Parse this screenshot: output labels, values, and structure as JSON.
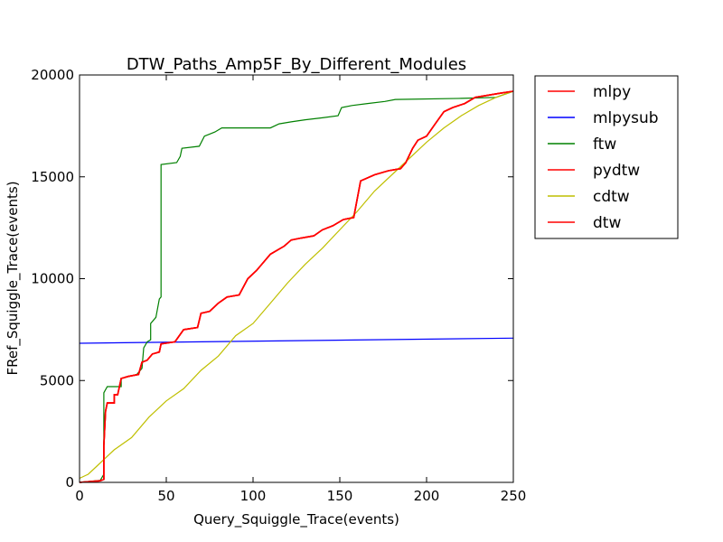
{
  "chart_data": {
    "type": "line",
    "title": "DTW_Paths_Amp5F_By_Different_Modules",
    "xlabel": "Query_Squiggle_Trace(events)",
    "ylabel": "FRef_Squiggle_Trace(events)",
    "xlim": [
      0,
      250
    ],
    "ylim": [
      0,
      20000
    ],
    "xticks": [
      0,
      50,
      100,
      150,
      200,
      250
    ],
    "yticks": [
      0,
      5000,
      10000,
      15000,
      20000
    ],
    "grid": false,
    "legend_placement": "outside-right",
    "series": [
      {
        "name": "mlpy",
        "color": "#ff0000",
        "points": [
          [
            0,
            0
          ],
          [
            12,
            80
          ],
          [
            14,
            150
          ],
          [
            14,
            1800
          ],
          [
            15,
            3500
          ],
          [
            16,
            3900
          ],
          [
            20,
            3900
          ],
          [
            20,
            4300
          ],
          [
            22,
            4300
          ],
          [
            24,
            5100
          ],
          [
            28,
            5200
          ],
          [
            34,
            5300
          ],
          [
            36,
            5900
          ],
          [
            39,
            6000
          ],
          [
            42,
            6300
          ],
          [
            46,
            6400
          ],
          [
            47,
            6800
          ],
          [
            55,
            6900
          ],
          [
            60,
            7500
          ],
          [
            68,
            7600
          ],
          [
            70,
            8300
          ],
          [
            75,
            8400
          ],
          [
            80,
            8800
          ],
          [
            85,
            9100
          ],
          [
            92,
            9200
          ],
          [
            97,
            10000
          ],
          [
            102,
            10400
          ],
          [
            110,
            11200
          ],
          [
            118,
            11600
          ],
          [
            122,
            11900
          ],
          [
            128,
            12000
          ],
          [
            135,
            12100
          ],
          [
            140,
            12400
          ],
          [
            146,
            12600
          ],
          [
            152,
            12900
          ],
          [
            158,
            13000
          ],
          [
            162,
            14800
          ],
          [
            170,
            15100
          ],
          [
            178,
            15300
          ],
          [
            185,
            15400
          ],
          [
            188,
            15700
          ],
          [
            192,
            16400
          ],
          [
            195,
            16800
          ],
          [
            200,
            17000
          ],
          [
            205,
            17600
          ],
          [
            210,
            18200
          ],
          [
            215,
            18400
          ],
          [
            222,
            18600
          ],
          [
            228,
            18900
          ],
          [
            235,
            19000
          ],
          [
            242,
            19100
          ],
          [
            250,
            19200
          ]
        ]
      },
      {
        "name": "mlpysub",
        "color": "#0000ff",
        "points": [
          [
            0,
            6830
          ],
          [
            250,
            7080
          ]
        ]
      },
      {
        "name": "ftw",
        "color": "#008000",
        "points": [
          [
            0,
            0
          ],
          [
            12,
            100
          ],
          [
            14,
            400
          ],
          [
            14,
            4400
          ],
          [
            16,
            4700
          ],
          [
            24,
            4700
          ],
          [
            24,
            5100
          ],
          [
            33,
            5300
          ],
          [
            36,
            5600
          ],
          [
            37,
            6600
          ],
          [
            39,
            6900
          ],
          [
            41,
            7000
          ],
          [
            41,
            7800
          ],
          [
            44,
            8100
          ],
          [
            46,
            9000
          ],
          [
            47,
            9100
          ],
          [
            47,
            15600
          ],
          [
            56,
            15700
          ],
          [
            58,
            16000
          ],
          [
            59,
            16400
          ],
          [
            69,
            16500
          ],
          [
            72,
            17000
          ],
          [
            75,
            17100
          ],
          [
            78,
            17200
          ],
          [
            82,
            17400
          ],
          [
            110,
            17400
          ],
          [
            115,
            17600
          ],
          [
            122,
            17700
          ],
          [
            130,
            17800
          ],
          [
            140,
            17900
          ],
          [
            149,
            18000
          ],
          [
            151,
            18400
          ],
          [
            157,
            18500
          ],
          [
            166,
            18600
          ],
          [
            176,
            18700
          ],
          [
            182,
            18800
          ],
          [
            220,
            18850
          ],
          [
            240,
            18900
          ],
          [
            250,
            19200
          ]
        ]
      },
      {
        "name": "pydtw",
        "color": "#ff0000",
        "points": [
          [
            0,
            0
          ],
          [
            12,
            80
          ],
          [
            14,
            150
          ],
          [
            14,
            1800
          ],
          [
            15,
            3500
          ],
          [
            16,
            3900
          ],
          [
            20,
            3900
          ],
          [
            20,
            4300
          ],
          [
            22,
            4300
          ],
          [
            24,
            5100
          ],
          [
            28,
            5200
          ],
          [
            34,
            5300
          ],
          [
            36,
            5900
          ],
          [
            39,
            6000
          ],
          [
            42,
            6300
          ],
          [
            46,
            6400
          ],
          [
            47,
            6800
          ],
          [
            55,
            6900
          ],
          [
            60,
            7500
          ],
          [
            68,
            7600
          ],
          [
            70,
            8300
          ],
          [
            75,
            8400
          ],
          [
            80,
            8800
          ],
          [
            85,
            9100
          ],
          [
            92,
            9200
          ],
          [
            97,
            10000
          ],
          [
            102,
            10400
          ],
          [
            110,
            11200
          ],
          [
            118,
            11600
          ],
          [
            122,
            11900
          ],
          [
            128,
            12000
          ],
          [
            135,
            12100
          ],
          [
            140,
            12400
          ],
          [
            146,
            12600
          ],
          [
            152,
            12900
          ],
          [
            158,
            13000
          ],
          [
            162,
            14800
          ],
          [
            170,
            15100
          ],
          [
            178,
            15300
          ],
          [
            185,
            15400
          ],
          [
            188,
            15700
          ],
          [
            192,
            16400
          ],
          [
            195,
            16800
          ],
          [
            200,
            17000
          ],
          [
            205,
            17600
          ],
          [
            210,
            18200
          ],
          [
            215,
            18400
          ],
          [
            222,
            18600
          ],
          [
            228,
            18900
          ],
          [
            235,
            19000
          ],
          [
            242,
            19100
          ],
          [
            250,
            19200
          ]
        ]
      },
      {
        "name": "cdtw",
        "color": "#bfbf00",
        "points": [
          [
            0,
            200
          ],
          [
            5,
            400
          ],
          [
            10,
            800
          ],
          [
            15,
            1200
          ],
          [
            20,
            1600
          ],
          [
            30,
            2200
          ],
          [
            40,
            3200
          ],
          [
            50,
            4000
          ],
          [
            60,
            4600
          ],
          [
            70,
            5500
          ],
          [
            80,
            6200
          ],
          [
            90,
            7200
          ],
          [
            100,
            7800
          ],
          [
            110,
            8800
          ],
          [
            120,
            9800
          ],
          [
            130,
            10700
          ],
          [
            140,
            11500
          ],
          [
            150,
            12400
          ],
          [
            160,
            13300
          ],
          [
            170,
            14300
          ],
          [
            180,
            15100
          ],
          [
            190,
            15900
          ],
          [
            200,
            16700
          ],
          [
            210,
            17400
          ],
          [
            220,
            18000
          ],
          [
            230,
            18500
          ],
          [
            240,
            18900
          ],
          [
            250,
            19200
          ]
        ]
      },
      {
        "name": "dtw",
        "color": "#ff0000",
        "points": [
          [
            0,
            0
          ],
          [
            12,
            80
          ],
          [
            14,
            150
          ],
          [
            14,
            1800
          ],
          [
            15,
            3500
          ],
          [
            16,
            3900
          ],
          [
            20,
            3900
          ],
          [
            20,
            4300
          ],
          [
            22,
            4300
          ],
          [
            24,
            5100
          ],
          [
            28,
            5200
          ],
          [
            34,
            5300
          ],
          [
            36,
            5900
          ],
          [
            39,
            6000
          ],
          [
            42,
            6300
          ],
          [
            46,
            6400
          ],
          [
            47,
            6800
          ],
          [
            55,
            6900
          ],
          [
            60,
            7500
          ],
          [
            68,
            7600
          ],
          [
            70,
            8300
          ],
          [
            75,
            8400
          ],
          [
            80,
            8800
          ],
          [
            85,
            9100
          ],
          [
            92,
            9200
          ],
          [
            97,
            10000
          ],
          [
            102,
            10400
          ],
          [
            110,
            11200
          ],
          [
            118,
            11600
          ],
          [
            122,
            11900
          ],
          [
            128,
            12000
          ],
          [
            135,
            12100
          ],
          [
            140,
            12400
          ],
          [
            146,
            12600
          ],
          [
            152,
            12900
          ],
          [
            158,
            13000
          ],
          [
            162,
            14800
          ],
          [
            170,
            15100
          ],
          [
            178,
            15300
          ],
          [
            185,
            15400
          ],
          [
            188,
            15700
          ],
          [
            192,
            16400
          ],
          [
            195,
            16800
          ],
          [
            200,
            17000
          ],
          [
            205,
            17600
          ],
          [
            210,
            18200
          ],
          [
            215,
            18400
          ],
          [
            222,
            18600
          ],
          [
            228,
            18900
          ],
          [
            235,
            19000
          ],
          [
            242,
            19100
          ],
          [
            250,
            19200
          ]
        ]
      }
    ]
  }
}
